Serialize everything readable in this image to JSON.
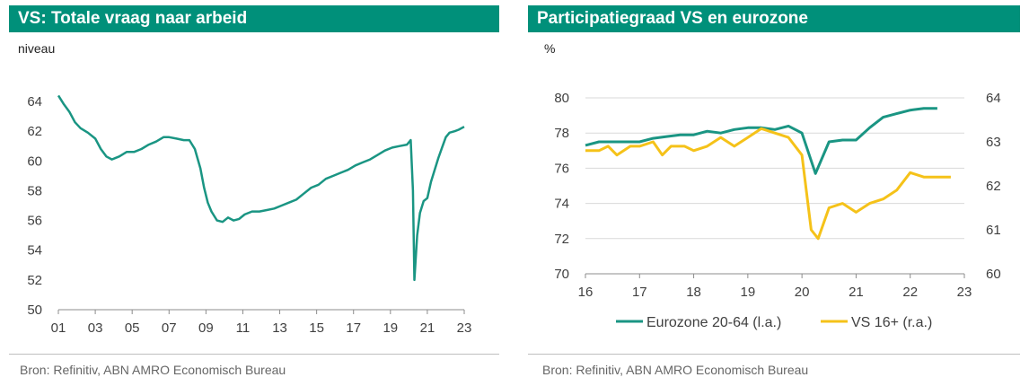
{
  "left_panel": {
    "title": "VS: Totale vraag naar arbeid",
    "unit": "niveau",
    "source": "Bron: Refinitiv, ABN AMRO Economisch Bureau"
  },
  "right_panel": {
    "title": "Participatiegraad VS en eurozone",
    "unit": "%",
    "source": "Bron: Refinitiv, ABN AMRO Economisch Bureau"
  },
  "colors": {
    "teal": "#1a9583",
    "yellow": "#f5c219",
    "title_bg": "#00907a"
  },
  "chart_data": [
    {
      "type": "line",
      "title": "VS: Totale vraag naar arbeid",
      "ylabel": "niveau",
      "xlabel": "",
      "xlim": [
        2001,
        2023
      ],
      "ylim": [
        50,
        64
      ],
      "yticks": [
        50,
        52,
        54,
        56,
        58,
        60,
        62,
        64
      ],
      "xticks": [
        {
          "value": 2001,
          "label": "01"
        },
        {
          "value": 2003,
          "label": "03"
        },
        {
          "value": 2005,
          "label": "05"
        },
        {
          "value": 2007,
          "label": "07"
        },
        {
          "value": 2009,
          "label": "09"
        },
        {
          "value": 2011,
          "label": "11"
        },
        {
          "value": 2013,
          "label": "13"
        },
        {
          "value": 2015,
          "label": "15"
        },
        {
          "value": 2017,
          "label": "17"
        },
        {
          "value": 2019,
          "label": "19"
        },
        {
          "value": 2021,
          "label": "21"
        },
        {
          "value": 2023,
          "label": "23"
        }
      ],
      "series": [
        {
          "name": "Totale vraag naar arbeid",
          "color": "#1a9583",
          "points": [
            [
              2001.0,
              64.4
            ],
            [
              2001.3,
              63.8
            ],
            [
              2001.6,
              63.3
            ],
            [
              2001.9,
              62.6
            ],
            [
              2002.2,
              62.2
            ],
            [
              2002.6,
              61.9
            ],
            [
              2003.0,
              61.5
            ],
            [
              2003.3,
              60.8
            ],
            [
              2003.6,
              60.3
            ],
            [
              2003.9,
              60.1
            ],
            [
              2004.3,
              60.3
            ],
            [
              2004.7,
              60.6
            ],
            [
              2005.1,
              60.6
            ],
            [
              2005.5,
              60.8
            ],
            [
              2005.9,
              61.1
            ],
            [
              2006.3,
              61.3
            ],
            [
              2006.7,
              61.6
            ],
            [
              2007.0,
              61.6
            ],
            [
              2007.4,
              61.5
            ],
            [
              2007.8,
              61.4
            ],
            [
              2008.1,
              61.4
            ],
            [
              2008.4,
              60.8
            ],
            [
              2008.7,
              59.5
            ],
            [
              2008.9,
              58.2
            ],
            [
              2009.1,
              57.2
            ],
            [
              2009.3,
              56.6
            ],
            [
              2009.6,
              56.0
            ],
            [
              2009.9,
              55.9
            ],
            [
              2010.2,
              56.2
            ],
            [
              2010.5,
              56.0
            ],
            [
              2010.8,
              56.1
            ],
            [
              2011.1,
              56.4
            ],
            [
              2011.5,
              56.6
            ],
            [
              2011.9,
              56.6
            ],
            [
              2012.3,
              56.7
            ],
            [
              2012.7,
              56.8
            ],
            [
              2013.1,
              57.0
            ],
            [
              2013.5,
              57.2
            ],
            [
              2013.9,
              57.4
            ],
            [
              2014.3,
              57.8
            ],
            [
              2014.7,
              58.2
            ],
            [
              2015.1,
              58.4
            ],
            [
              2015.5,
              58.8
            ],
            [
              2015.9,
              59.0
            ],
            [
              2016.3,
              59.2
            ],
            [
              2016.7,
              59.4
            ],
            [
              2017.1,
              59.7
            ],
            [
              2017.5,
              59.9
            ],
            [
              2017.9,
              60.1
            ],
            [
              2018.3,
              60.4
            ],
            [
              2018.7,
              60.7
            ],
            [
              2019.1,
              60.9
            ],
            [
              2019.5,
              61.0
            ],
            [
              2019.9,
              61.1
            ],
            [
              2020.1,
              61.4
            ],
            [
              2020.22,
              58.0
            ],
            [
              2020.3,
              52.0
            ],
            [
              2020.45,
              55.0
            ],
            [
              2020.6,
              56.5
            ],
            [
              2020.8,
              57.3
            ],
            [
              2021.0,
              57.5
            ],
            [
              2021.2,
              58.6
            ],
            [
              2021.4,
              59.4
            ],
            [
              2021.6,
              60.2
            ],
            [
              2021.8,
              60.9
            ],
            [
              2022.0,
              61.6
            ],
            [
              2022.2,
              61.9
            ],
            [
              2022.5,
              62.0
            ],
            [
              2022.7,
              62.1
            ],
            [
              2023.0,
              62.3
            ]
          ]
        }
      ]
    },
    {
      "type": "line",
      "title": "Participatiegraad VS en eurozone",
      "ylabel": "%",
      "xlabel": "",
      "xlim": [
        2016,
        2023
      ],
      "ylim": [
        70,
        80
      ],
      "yticks": [
        70,
        72,
        74,
        76,
        78,
        80
      ],
      "y2lim": [
        60,
        64
      ],
      "y2ticks": [
        60,
        61,
        62,
        63,
        64
      ],
      "xticks": [
        {
          "value": 2016,
          "label": "16"
        },
        {
          "value": 2017,
          "label": "17"
        },
        {
          "value": 2018,
          "label": "18"
        },
        {
          "value": 2019,
          "label": "19"
        },
        {
          "value": 2020,
          "label": "20"
        },
        {
          "value": 2021,
          "label": "21"
        },
        {
          "value": 2022,
          "label": "22"
        },
        {
          "value": 2023,
          "label": "23"
        }
      ],
      "legend_position": "bottom",
      "series": [
        {
          "name": "Eurozone 20-64 (l.a.)",
          "axis": "left",
          "color": "#1a9583",
          "points": [
            [
              2016.0,
              77.3
            ],
            [
              2016.25,
              77.5
            ],
            [
              2016.5,
              77.5
            ],
            [
              2016.75,
              77.5
            ],
            [
              2017.0,
              77.5
            ],
            [
              2017.25,
              77.7
            ],
            [
              2017.5,
              77.8
            ],
            [
              2017.75,
              77.9
            ],
            [
              2018.0,
              77.9
            ],
            [
              2018.25,
              78.1
            ],
            [
              2018.5,
              78.0
            ],
            [
              2018.75,
              78.2
            ],
            [
              2019.0,
              78.3
            ],
            [
              2019.25,
              78.3
            ],
            [
              2019.5,
              78.2
            ],
            [
              2019.75,
              78.4
            ],
            [
              2020.0,
              78.0
            ],
            [
              2020.25,
              75.7
            ],
            [
              2020.5,
              77.5
            ],
            [
              2020.75,
              77.6
            ],
            [
              2021.0,
              77.6
            ],
            [
              2021.25,
              78.3
            ],
            [
              2021.5,
              78.9
            ],
            [
              2021.75,
              79.1
            ],
            [
              2022.0,
              79.3
            ],
            [
              2022.25,
              79.4
            ],
            [
              2022.5,
              79.4
            ]
          ]
        },
        {
          "name": "VS 16+ (r.a.)",
          "axis": "right",
          "color": "#f5c219",
          "points": [
            [
              2016.0,
              62.8
            ],
            [
              2016.25,
              62.8
            ],
            [
              2016.42,
              62.9
            ],
            [
              2016.58,
              62.7
            ],
            [
              2016.83,
              62.9
            ],
            [
              2017.0,
              62.9
            ],
            [
              2017.25,
              63.0
            ],
            [
              2017.42,
              62.7
            ],
            [
              2017.58,
              62.9
            ],
            [
              2017.83,
              62.9
            ],
            [
              2018.0,
              62.8
            ],
            [
              2018.25,
              62.9
            ],
            [
              2018.5,
              63.1
            ],
            [
              2018.75,
              62.9
            ],
            [
              2019.0,
              63.1
            ],
            [
              2019.25,
              63.3
            ],
            [
              2019.5,
              63.2
            ],
            [
              2019.75,
              63.1
            ],
            [
              2020.0,
              62.7
            ],
            [
              2020.17,
              61.0
            ],
            [
              2020.3,
              60.8
            ],
            [
              2020.5,
              61.5
            ],
            [
              2020.75,
              61.6
            ],
            [
              2021.0,
              61.4
            ],
            [
              2021.25,
              61.6
            ],
            [
              2021.5,
              61.7
            ],
            [
              2021.75,
              61.9
            ],
            [
              2022.0,
              62.3
            ],
            [
              2022.25,
              62.2
            ],
            [
              2022.5,
              62.2
            ],
            [
              2022.75,
              62.2
            ]
          ]
        }
      ]
    }
  ]
}
